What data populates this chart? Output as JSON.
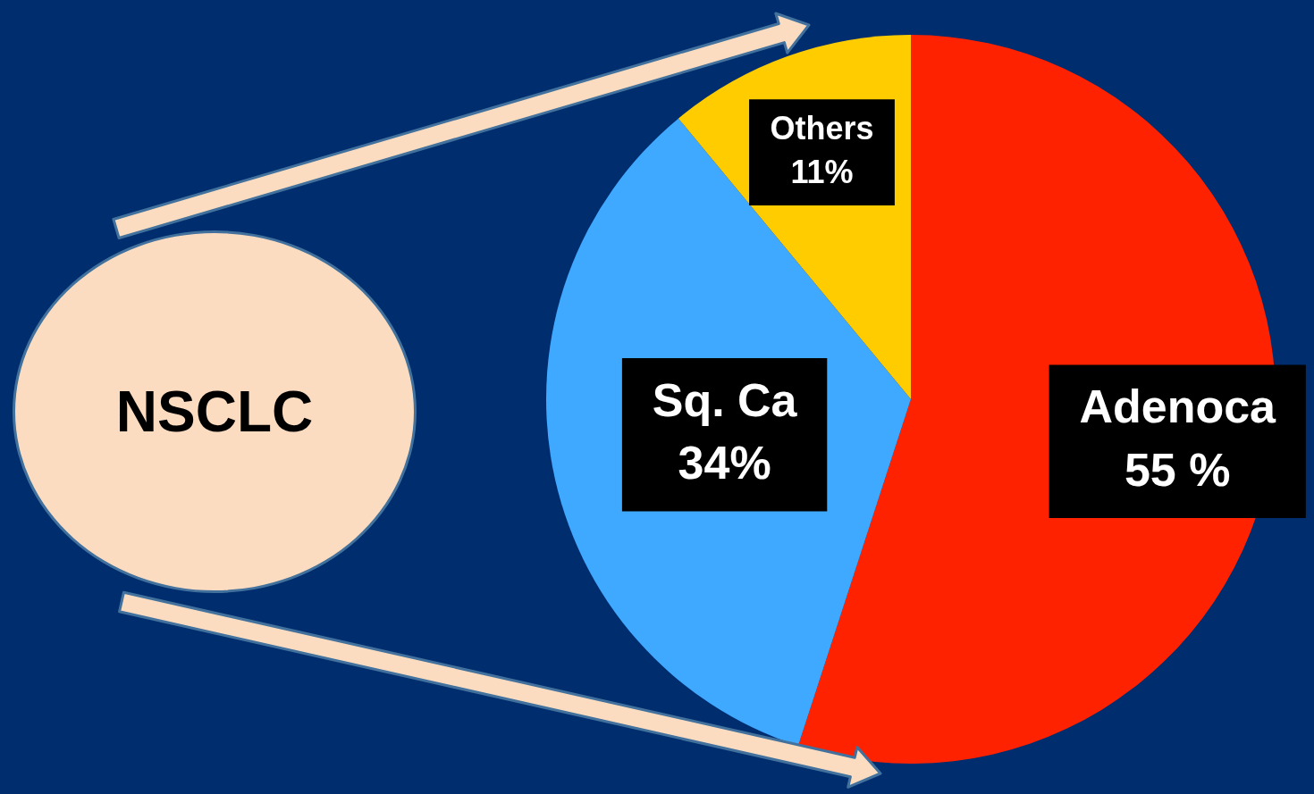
{
  "chart_data": {
    "type": "pie",
    "title": "NSCLC",
    "categories": [
      "Adenoca",
      "Sq. Ca",
      "Others"
    ],
    "values": [
      55,
      34,
      11
    ],
    "colors": [
      "#ff2200",
      "#3fa9ff",
      "#ffcc00"
    ],
    "data_labels": true,
    "value_labels": [
      "55 %",
      "34%",
      "11%"
    ],
    "legend": false
  }
}
